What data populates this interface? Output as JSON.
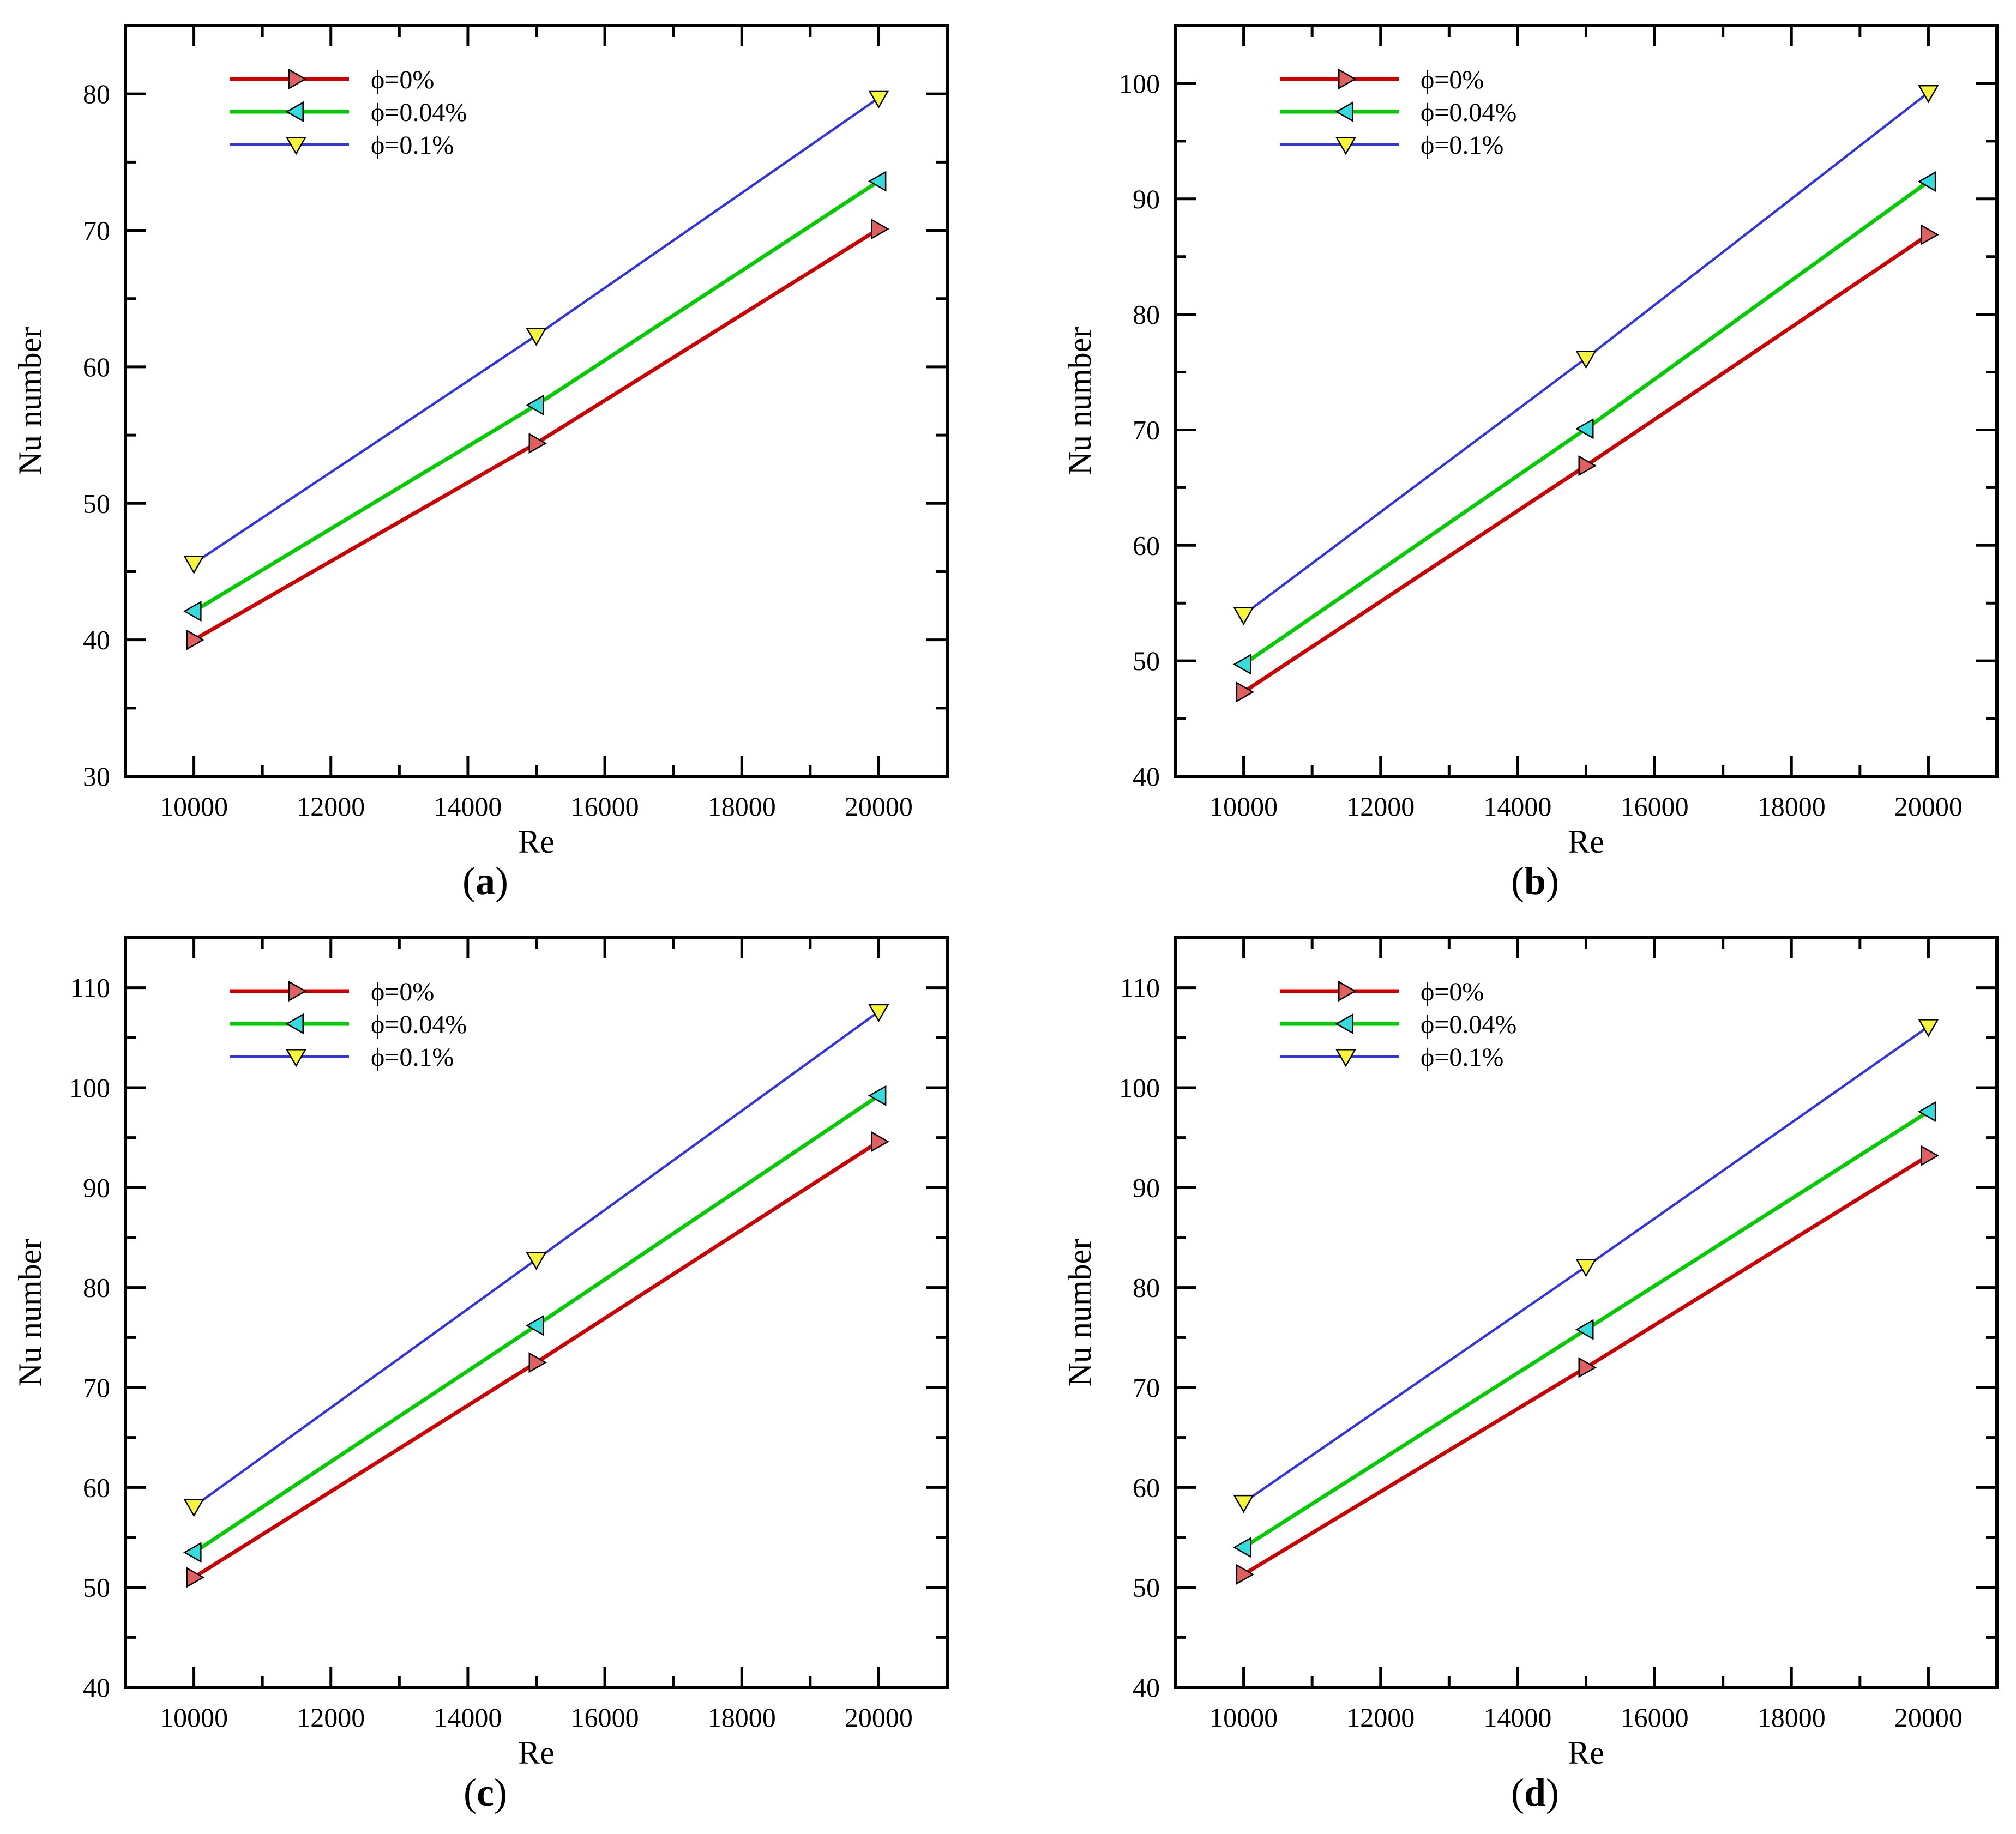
{
  "figure": {
    "panel_labels": [
      "(a)",
      "(b)",
      "(c)",
      "(d)"
    ],
    "colors": {
      "series_0": "#cc0000",
      "series_1": "#00cc00",
      "series_2": "#3333e6",
      "marker_0": "#e06060",
      "marker_1": "#33dddd",
      "marker_2": "#f5f53a"
    },
    "marker_icons": [
      "triangle-right-marker",
      "triangle-left-marker",
      "triangle-down-marker"
    ]
  },
  "chart_data": [
    {
      "type": "line",
      "panel": "(a)",
      "xlabel": "Re",
      "ylabel": "Nu number",
      "xlim": [
        9000,
        21000
      ],
      "ylim": [
        30,
        85
      ],
      "xticks": [
        10000,
        12000,
        14000,
        16000,
        18000,
        20000
      ],
      "yticks": [
        30,
        40,
        50,
        60,
        70,
        80
      ],
      "x": [
        10000,
        15000,
        20000
      ],
      "series": [
        {
          "name": "ϕ=0%",
          "values": [
            40.0,
            54.4,
            70.1
          ]
        },
        {
          "name": "ϕ=0.04%",
          "values": [
            42.1,
            57.2,
            73.6
          ]
        },
        {
          "name": "ϕ=0.1%",
          "values": [
            45.6,
            62.3,
            79.7
          ]
        }
      ],
      "legend": "top-left"
    },
    {
      "type": "line",
      "panel": "(b)",
      "xlabel": "Re",
      "ylabel": "Nu number",
      "xlim": [
        9000,
        21000
      ],
      "ylim": [
        40,
        105
      ],
      "xticks": [
        10000,
        12000,
        14000,
        16000,
        18000,
        20000
      ],
      "yticks": [
        40,
        50,
        60,
        70,
        80,
        90,
        100
      ],
      "x": [
        10000,
        15000,
        20000
      ],
      "series": [
        {
          "name": "ϕ=0%",
          "values": [
            47.3,
            66.9,
            86.9
          ]
        },
        {
          "name": "ϕ=0.04%",
          "values": [
            49.7,
            70.1,
            91.5
          ]
        },
        {
          "name": "ϕ=0.1%",
          "values": [
            54.0,
            76.2,
            99.2
          ]
        }
      ],
      "legend": "top-left"
    },
    {
      "type": "line",
      "panel": "(c)",
      "xlabel": "Re",
      "ylabel": "Nu number",
      "xlim": [
        9000,
        21000
      ],
      "ylim": [
        40,
        115
      ],
      "xticks": [
        10000,
        12000,
        14000,
        16000,
        18000,
        20000
      ],
      "yticks": [
        40,
        50,
        60,
        70,
        80,
        90,
        100,
        110
      ],
      "x": [
        10000,
        15000,
        20000
      ],
      "series": [
        {
          "name": "ϕ=0%",
          "values": [
            51.0,
            72.5,
            94.6
          ]
        },
        {
          "name": "ϕ=0.04%",
          "values": [
            53.5,
            76.2,
            99.2
          ]
        },
        {
          "name": "ϕ=0.1%",
          "values": [
            58.1,
            82.8,
            107.6
          ]
        }
      ],
      "legend": "top-left"
    },
    {
      "type": "line",
      "panel": "(d)",
      "xlabel": "Re",
      "ylabel": "Nu number",
      "xlim": [
        9000,
        21000
      ],
      "ylim": [
        40,
        115
      ],
      "xticks": [
        10000,
        12000,
        14000,
        16000,
        18000,
        20000
      ],
      "yticks": [
        40,
        50,
        60,
        70,
        80,
        90,
        100,
        110
      ],
      "x": [
        10000,
        15000,
        20000
      ],
      "series": [
        {
          "name": "ϕ=0%",
          "values": [
            51.3,
            72.0,
            93.2
          ]
        },
        {
          "name": "ϕ=0.04%",
          "values": [
            54.0,
            75.8,
            97.6
          ]
        },
        {
          "name": "ϕ=0.1%",
          "values": [
            58.5,
            82.1,
            106.1
          ]
        }
      ],
      "legend": "top-left"
    }
  ]
}
